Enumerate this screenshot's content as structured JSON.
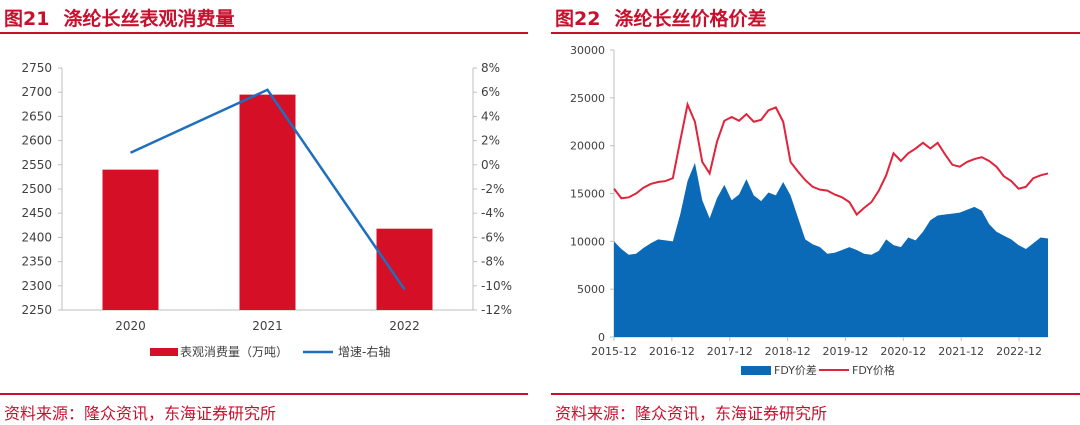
{
  "left": {
    "fig_number": "图21",
    "fig_title": "涤纶长丝表观消费量",
    "source": "资料来源：隆众资讯，东海证券研究所"
  },
  "right": {
    "fig_number": "图22",
    "fig_title": "涤纶长丝价格价差",
    "source": "资料来源：隆众资讯，东海证券研究所"
  },
  "colors": {
    "accent": "#c8102e",
    "bar": "#d50f25",
    "line_blue": "#1f6fbf",
    "area_blue": "#0a6ab8",
    "line_red": "#e0243b"
  },
  "chart_data": [
    {
      "type": "bar",
      "categories": [
        "2020",
        "2021",
        "2022"
      ],
      "series": [
        {
          "name": "表观消费量（万吨）",
          "type": "bar",
          "axis": "left",
          "values": [
            2540,
            2695,
            2418
          ]
        },
        {
          "name": "增速-右轴",
          "type": "line",
          "axis": "right",
          "values": [
            1.0,
            6.2,
            -10.3
          ]
        }
      ],
      "ylim": [
        2250,
        2750
      ],
      "yticks": [
        2250,
        2300,
        2350,
        2400,
        2450,
        2500,
        2550,
        2600,
        2650,
        2700,
        2750
      ],
      "y2lim": [
        -12,
        8
      ],
      "y2ticks": [
        "8%",
        "6%",
        "4%",
        "2%",
        "0%",
        "-2%",
        "-4%",
        "-6%",
        "-8%",
        "-10%",
        "-12%"
      ],
      "legend": "bottom"
    },
    {
      "type": "area",
      "x_start": "2015-12",
      "x_end": "2023-06",
      "xticks": [
        "2015-12",
        "2016-12",
        "2017-12",
        "2018-12",
        "2019-12",
        "2020-12",
        "2021-12",
        "2022-12"
      ],
      "ylim": [
        0,
        30000
      ],
      "yticks": [
        "0",
        "5000",
        "10000",
        "15000",
        "20000",
        "25000",
        "30000"
      ],
      "series": [
        {
          "name": "FDY价差",
          "type": "area",
          "values": [
            10000,
            9200,
            8600,
            8700,
            9300,
            9800,
            10200,
            10100,
            10000,
            12800,
            16300,
            18200,
            14300,
            12400,
            14500,
            15900,
            14300,
            14900,
            16500,
            14800,
            14200,
            15100,
            14800,
            16200,
            14800,
            12500,
            10200,
            9700,
            9400,
            8700,
            8800,
            9100,
            9400,
            9100,
            8700,
            8600,
            9000,
            10200,
            9600,
            9400,
            10400,
            10100,
            11000,
            12200,
            12700,
            12800,
            12900,
            13000,
            13300,
            13600,
            13200,
            11800,
            11000,
            10600,
            10200,
            9600,
            9200,
            9800,
            10400,
            10300
          ]
        },
        {
          "name": "FDY价格",
          "type": "line",
          "values": [
            15500,
            14500,
            14600,
            15000,
            15600,
            16000,
            16200,
            16300,
            16600,
            20500,
            24300,
            22500,
            18300,
            17100,
            20400,
            22600,
            23000,
            22600,
            23300,
            22500,
            22700,
            23700,
            24000,
            22500,
            18300,
            17300,
            16400,
            15700,
            15400,
            15300,
            14900,
            14600,
            14100,
            12800,
            13500,
            14100,
            15300,
            16900,
            19200,
            18400,
            19200,
            19700,
            20300,
            19700,
            20300,
            19100,
            18000,
            17800,
            18300,
            18600,
            18800,
            18400,
            17800,
            16800,
            16300,
            15500,
            15700,
            16600,
            16900,
            17100
          ]
        }
      ],
      "legend": "bottom"
    }
  ]
}
